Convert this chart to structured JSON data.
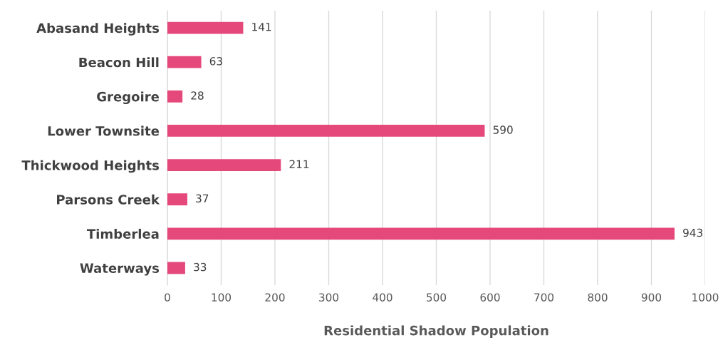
{
  "chart_data": {
    "type": "bar",
    "orientation": "horizontal",
    "xlabel": "Residential Shadow Population",
    "categories": [
      "Abasand Heights",
      "Beacon Hill",
      "Gregoire",
      "Lower Townsite",
      "Thickwood Heights",
      "Parsons Creek",
      "Timberlea",
      "Waterways"
    ],
    "values": [
      141,
      63,
      28,
      590,
      211,
      37,
      943,
      33
    ],
    "color": "#e5487a",
    "xlim": [
      0,
      1000
    ],
    "xticks": [
      0,
      100,
      200,
      300,
      400,
      500,
      600,
      700,
      800,
      900,
      1000
    ],
    "grid": "x",
    "data_labels": true
  }
}
